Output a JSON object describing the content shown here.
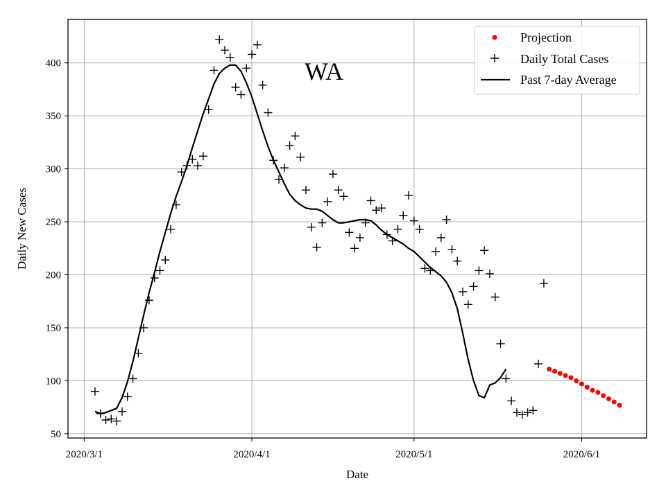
{
  "chart_data": {
    "type": "scatter",
    "annotation": "WA",
    "xlabel": "Date",
    "ylabel": "Daily New Cases",
    "x_ticks": [
      {
        "label": "2020/3/1",
        "day": 0
      },
      {
        "label": "2020/4/1",
        "day": 31
      },
      {
        "label": "2020/5/1",
        "day": 61
      },
      {
        "label": "2020/6/1",
        "day": 92
      }
    ],
    "y_ticks": [
      50,
      100,
      150,
      200,
      250,
      300,
      350,
      400
    ],
    "xlim": [
      -3,
      104
    ],
    "ylim": [
      46,
      441
    ],
    "grid": true,
    "legend_position": "top-right",
    "legend": [
      {
        "label": "Projection",
        "marker": "dot",
        "color": "#ff0000"
      },
      {
        "label": "Daily Total Cases",
        "marker": "plus",
        "color": "#000000"
      },
      {
        "label": "Past 7-day Average",
        "marker": "line",
        "color": "#000000"
      }
    ],
    "series": [
      {
        "name": "Daily Total Cases",
        "style": "plus",
        "color": "#000000",
        "points": [
          [
            2,
            90
          ],
          [
            3,
            69
          ],
          [
            4,
            63
          ],
          [
            5,
            64
          ],
          [
            6,
            62
          ],
          [
            7,
            71
          ],
          [
            8,
            85
          ],
          [
            9,
            102
          ],
          [
            10,
            126
          ],
          [
            11,
            150
          ],
          [
            12,
            176
          ],
          [
            13,
            197
          ],
          [
            14,
            204
          ],
          [
            15,
            214
          ],
          [
            16,
            243
          ],
          [
            17,
            266
          ],
          [
            18,
            297
          ],
          [
            19,
            303
          ],
          [
            20,
            309
          ],
          [
            21,
            303
          ],
          [
            22,
            312
          ],
          [
            23,
            356
          ],
          [
            24,
            393
          ],
          [
            25,
            422
          ],
          [
            26,
            412
          ],
          [
            27,
            405
          ],
          [
            28,
            377
          ],
          [
            29,
            370
          ],
          [
            30,
            395
          ],
          [
            31,
            408
          ],
          [
            32,
            417
          ],
          [
            33,
            379
          ],
          [
            34,
            353
          ],
          [
            35,
            308
          ],
          [
            36,
            290
          ],
          [
            37,
            301
          ],
          [
            38,
            322
          ],
          [
            39,
            331
          ],
          [
            40,
            311
          ],
          [
            41,
            280
          ],
          [
            42,
            245
          ],
          [
            43,
            226
          ],
          [
            44,
            249
          ],
          [
            45,
            269
          ],
          [
            46,
            295
          ],
          [
            47,
            280
          ],
          [
            48,
            274
          ],
          [
            49,
            240
          ],
          [
            50,
            225
          ],
          [
            51,
            235
          ],
          [
            52,
            249
          ],
          [
            53,
            270
          ],
          [
            54,
            261
          ],
          [
            55,
            263
          ],
          [
            56,
            238
          ],
          [
            57,
            232
          ],
          [
            58,
            243
          ],
          [
            59,
            256
          ],
          [
            60,
            275
          ],
          [
            61,
            251
          ],
          [
            62,
            243
          ],
          [
            63,
            206
          ],
          [
            64,
            204
          ],
          [
            65,
            222
          ],
          [
            66,
            235
          ],
          [
            67,
            252
          ],
          [
            68,
            224
          ],
          [
            69,
            213
          ],
          [
            70,
            184
          ],
          [
            71,
            172
          ],
          [
            72,
            189
          ],
          [
            73,
            204
          ],
          [
            74,
            223
          ],
          [
            75,
            201
          ],
          [
            76,
            179
          ],
          [
            77,
            135
          ],
          [
            78,
            102
          ],
          [
            79,
            81
          ],
          [
            80,
            70
          ],
          [
            81,
            68
          ],
          [
            82,
            70
          ],
          [
            83,
            72
          ],
          [
            84,
            116
          ],
          [
            85,
            192
          ]
        ]
      },
      {
        "name": "Past 7-day Average",
        "style": "line",
        "color": "#000000",
        "points": [
          [
            2,
            71
          ],
          [
            3,
            69
          ],
          [
            4,
            70
          ],
          [
            5,
            72
          ],
          [
            6,
            74
          ],
          [
            7,
            84
          ],
          [
            8,
            99
          ],
          [
            9,
            118
          ],
          [
            10,
            140
          ],
          [
            11,
            162
          ],
          [
            12,
            183
          ],
          [
            13,
            202
          ],
          [
            14,
            222
          ],
          [
            15,
            240
          ],
          [
            16,
            258
          ],
          [
            17,
            274
          ],
          [
            18,
            288
          ],
          [
            19,
            303
          ],
          [
            20,
            320
          ],
          [
            21,
            336
          ],
          [
            22,
            352
          ],
          [
            23,
            366
          ],
          [
            24,
            380
          ],
          [
            25,
            390
          ],
          [
            26,
            395
          ],
          [
            27,
            398
          ],
          [
            28,
            398
          ],
          [
            29,
            392
          ],
          [
            30,
            381
          ],
          [
            31,
            368
          ],
          [
            32,
            352
          ],
          [
            33,
            336
          ],
          [
            34,
            321
          ],
          [
            35,
            308
          ],
          [
            36,
            297
          ],
          [
            37,
            286
          ],
          [
            38,
            276
          ],
          [
            39,
            270
          ],
          [
            40,
            266
          ],
          [
            41,
            263
          ],
          [
            42,
            262
          ],
          [
            43,
            262
          ],
          [
            44,
            260
          ],
          [
            45,
            256
          ],
          [
            46,
            252
          ],
          [
            47,
            249
          ],
          [
            48,
            249
          ],
          [
            49,
            250
          ],
          [
            50,
            251
          ],
          [
            51,
            252
          ],
          [
            52,
            252
          ],
          [
            53,
            251
          ],
          [
            54,
            247
          ],
          [
            55,
            242
          ],
          [
            56,
            238
          ],
          [
            57,
            235
          ],
          [
            58,
            232
          ],
          [
            59,
            229
          ],
          [
            60,
            225
          ],
          [
            61,
            222
          ],
          [
            62,
            217
          ],
          [
            63,
            212
          ],
          [
            64,
            207
          ],
          [
            65,
            203
          ],
          [
            66,
            199
          ],
          [
            67,
            193
          ],
          [
            68,
            183
          ],
          [
            69,
            168
          ],
          [
            70,
            145
          ],
          [
            71,
            120
          ],
          [
            72,
            100
          ],
          [
            73,
            86
          ],
          [
            74,
            84
          ],
          [
            75,
            96
          ],
          [
            76,
            98
          ],
          [
            77,
            103
          ],
          [
            78,
            111
          ]
        ]
      },
      {
        "name": "Projection",
        "style": "dot",
        "color": "#ff0000",
        "points": [
          [
            86,
            111
          ],
          [
            87,
            109
          ],
          [
            88,
            107
          ],
          [
            89,
            105
          ],
          [
            90,
            103
          ],
          [
            91,
            100
          ],
          [
            92,
            97
          ],
          [
            93,
            94
          ],
          [
            94,
            91
          ],
          [
            95,
            89
          ],
          [
            96,
            86
          ],
          [
            97,
            83
          ],
          [
            98,
            80
          ],
          [
            99,
            77
          ]
        ]
      }
    ]
  }
}
